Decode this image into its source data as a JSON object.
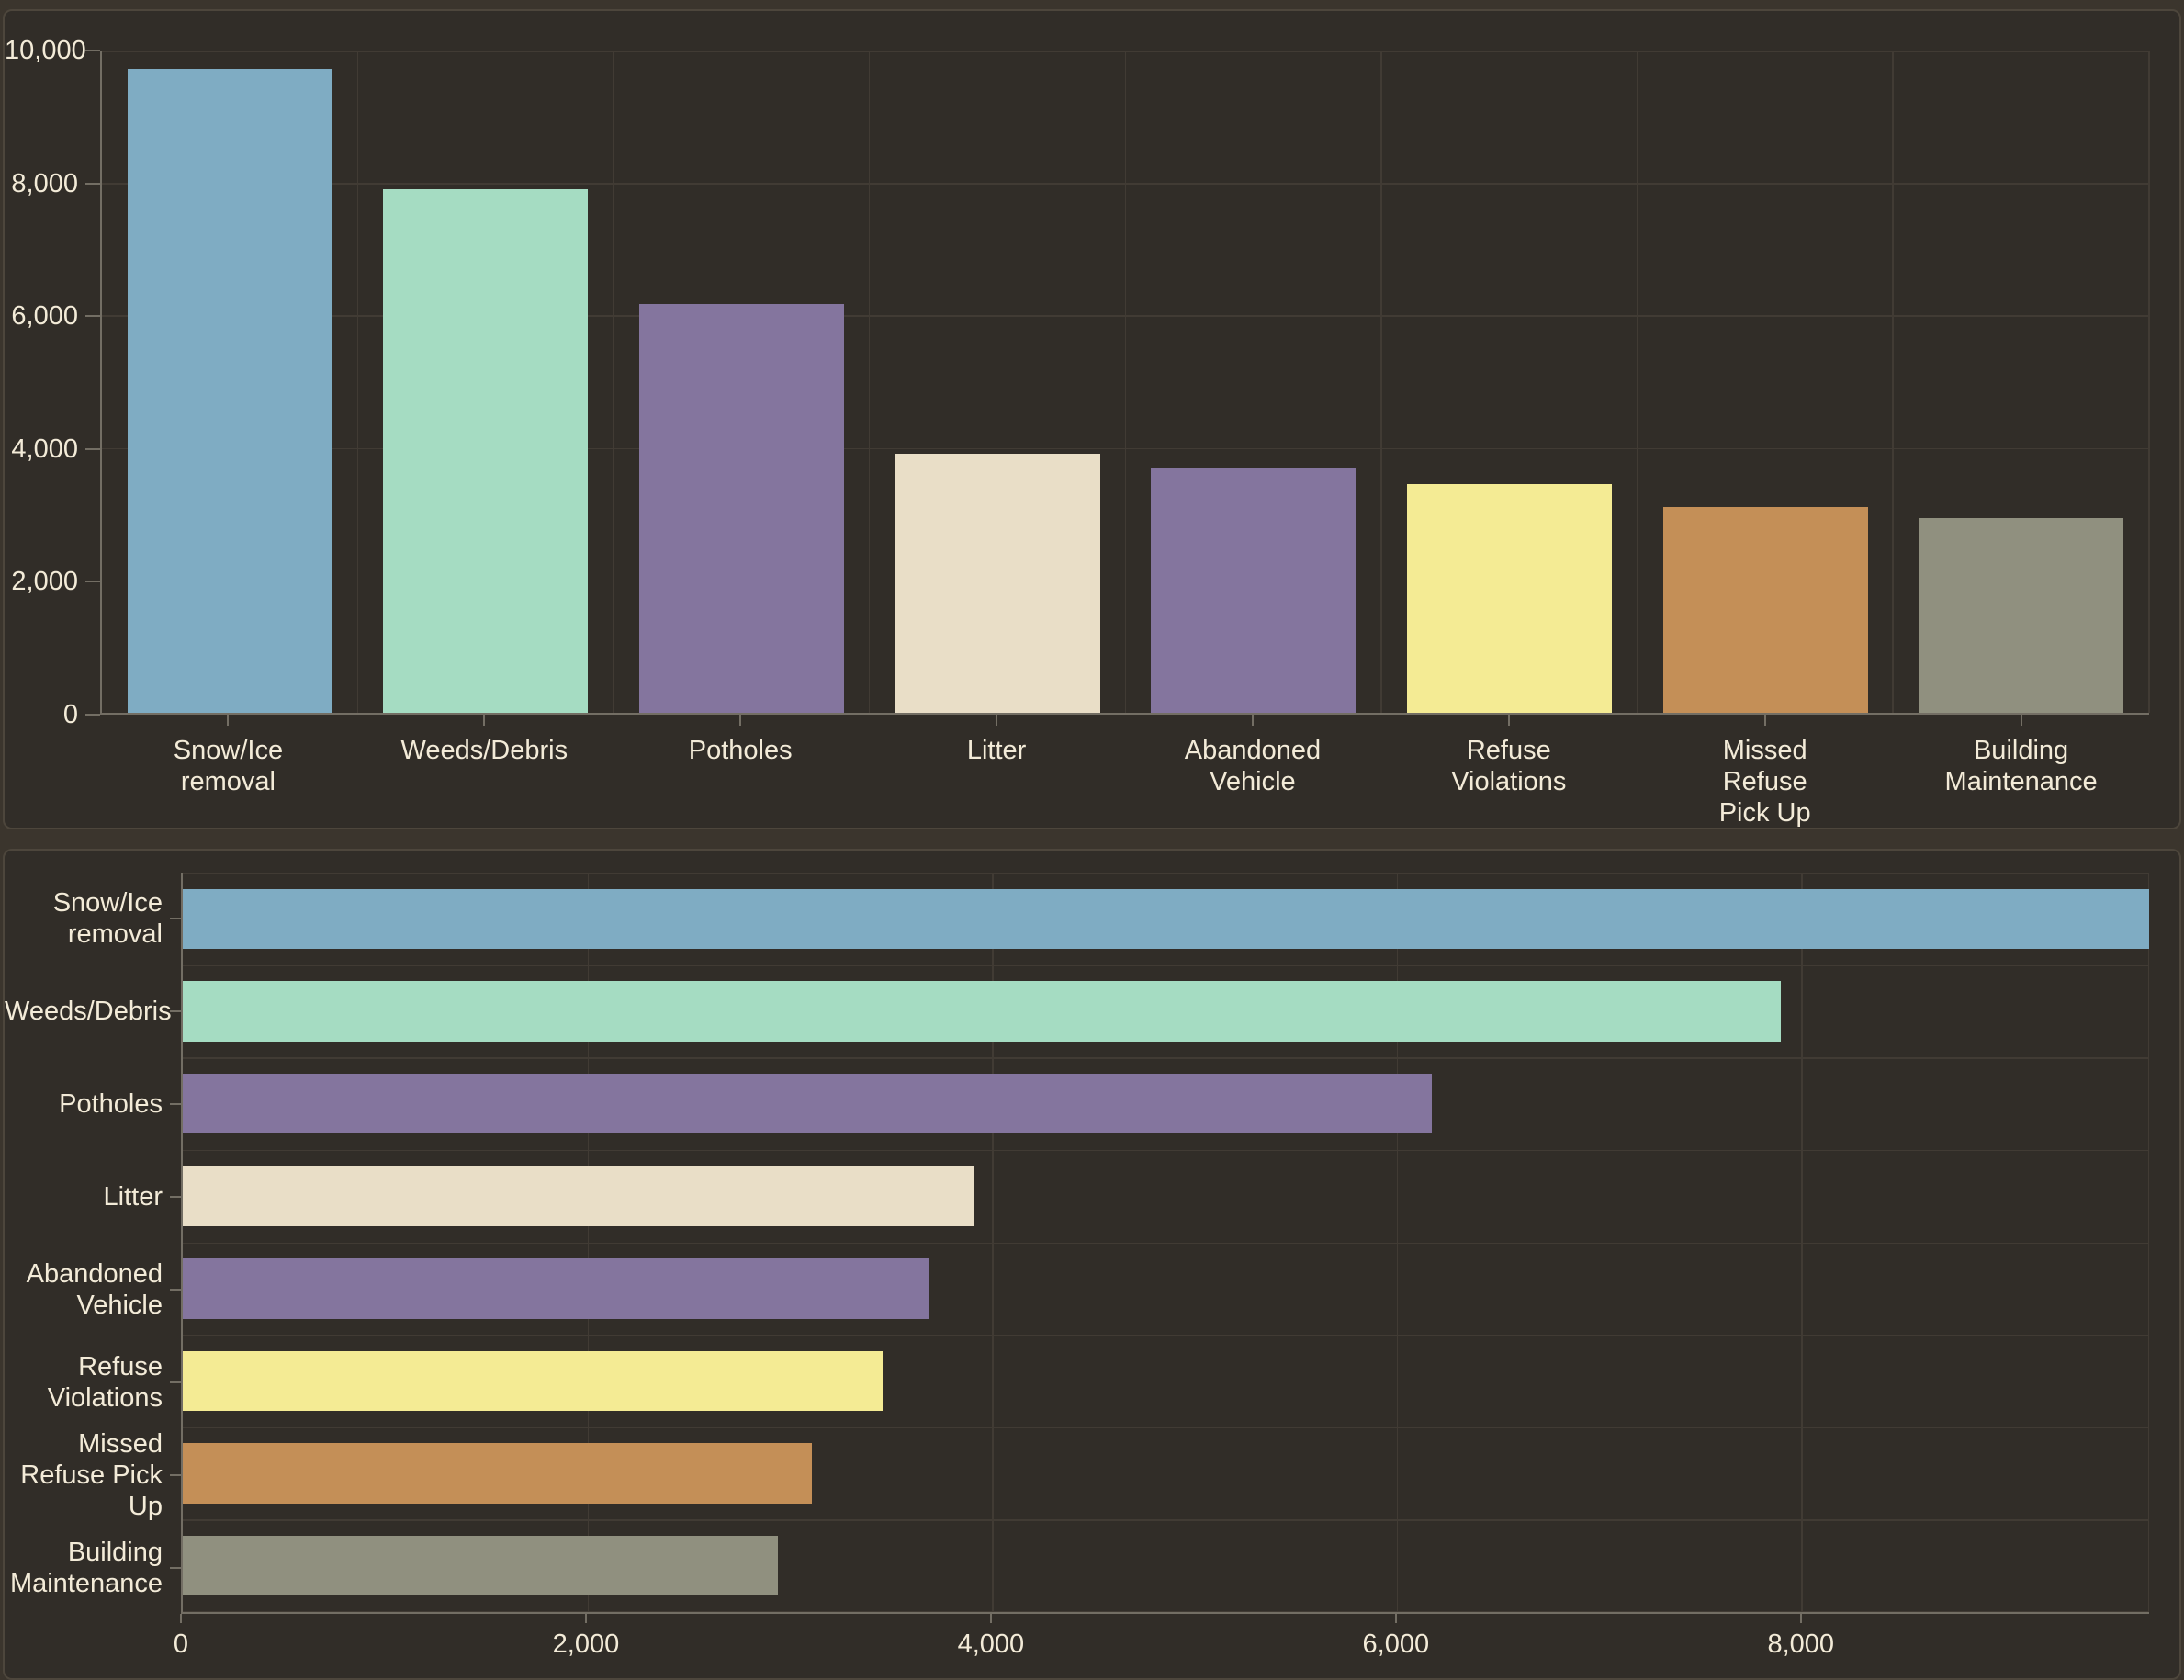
{
  "theme": {
    "page_background": "#3B352D",
    "panel_background": "#312D28",
    "panel_border": "#4D463C",
    "gridline_color": "#413B34",
    "axis_color": "#736E64",
    "label_color": "#F3EBD8"
  },
  "chart_data": [
    {
      "type": "bar",
      "orientation": "vertical",
      "title": "",
      "xlabel": "",
      "ylabel": "",
      "legend": false,
      "grid": true,
      "categories": [
        "Snow/Ice removal",
        "Weeds/Debris",
        "Potholes",
        "Litter",
        "Abandoned Vehicle",
        "Refuse Violations",
        "Missed Refuse Pick Up",
        "Building Maintenance"
      ],
      "category_label_lines": [
        [
          "Snow/Ice",
          "removal"
        ],
        [
          "Weeds/Debris"
        ],
        [
          "Potholes"
        ],
        [
          "Litter"
        ],
        [
          "Abandoned",
          "Vehicle"
        ],
        [
          "Refuse",
          "Violations"
        ],
        [
          "Missed",
          "Refuse",
          "Pick Up"
        ],
        [
          "Building",
          "Maintenance"
        ]
      ],
      "values": [
        9720,
        7900,
        6175,
        3910,
        3690,
        3460,
        3110,
        2940
      ],
      "colors": [
        "#7FACC3",
        "#A5DCC2",
        "#84759E",
        "#E9DEC7",
        "#84759E",
        "#F4EB94",
        "#C48F57",
        "#90907F"
      ],
      "ylim": [
        0,
        10000
      ],
      "yticks": [
        {
          "value": 0,
          "label": "0"
        },
        {
          "value": 2000,
          "label": "2,000"
        },
        {
          "value": 4000,
          "label": "4,000"
        },
        {
          "value": 6000,
          "label": "6,000"
        },
        {
          "value": 8000,
          "label": "8,000"
        },
        {
          "value": 10000,
          "label": "10,000"
        }
      ]
    },
    {
      "type": "bar",
      "orientation": "horizontal",
      "title": "",
      "xlabel": "",
      "ylabel": "",
      "legend": false,
      "grid": true,
      "categories": [
        "Snow/Ice removal",
        "Weeds/Debris",
        "Potholes",
        "Litter",
        "Abandoned Vehicle",
        "Refuse Violations",
        "Missed Refuse Pick Up",
        "Building Maintenance"
      ],
      "category_label_lines": [
        [
          "Snow/Ice",
          "removal"
        ],
        [
          "Weeds/Debris"
        ],
        [
          "Potholes"
        ],
        [
          "Litter"
        ],
        [
          "Abandoned",
          "Vehicle"
        ],
        [
          "Refuse",
          "Violations"
        ],
        [
          "Missed",
          "Refuse Pick",
          "Up"
        ],
        [
          "Building",
          "Maintenance"
        ]
      ],
      "values": [
        9720,
        7900,
        6175,
        3910,
        3690,
        3460,
        3110,
        2940
      ],
      "colors": [
        "#7FACC3",
        "#A5DCC2",
        "#84759E",
        "#E9DEC7",
        "#84759E",
        "#F4EB94",
        "#C48F57",
        "#90907F"
      ],
      "xlim": [
        0,
        9720
      ],
      "xticks": [
        {
          "value": 0,
          "label": "0"
        },
        {
          "value": 2000,
          "label": "2,000"
        },
        {
          "value": 4000,
          "label": "4,000"
        },
        {
          "value": 6000,
          "label": "6,000"
        },
        {
          "value": 8000,
          "label": "8,000"
        }
      ]
    }
  ]
}
